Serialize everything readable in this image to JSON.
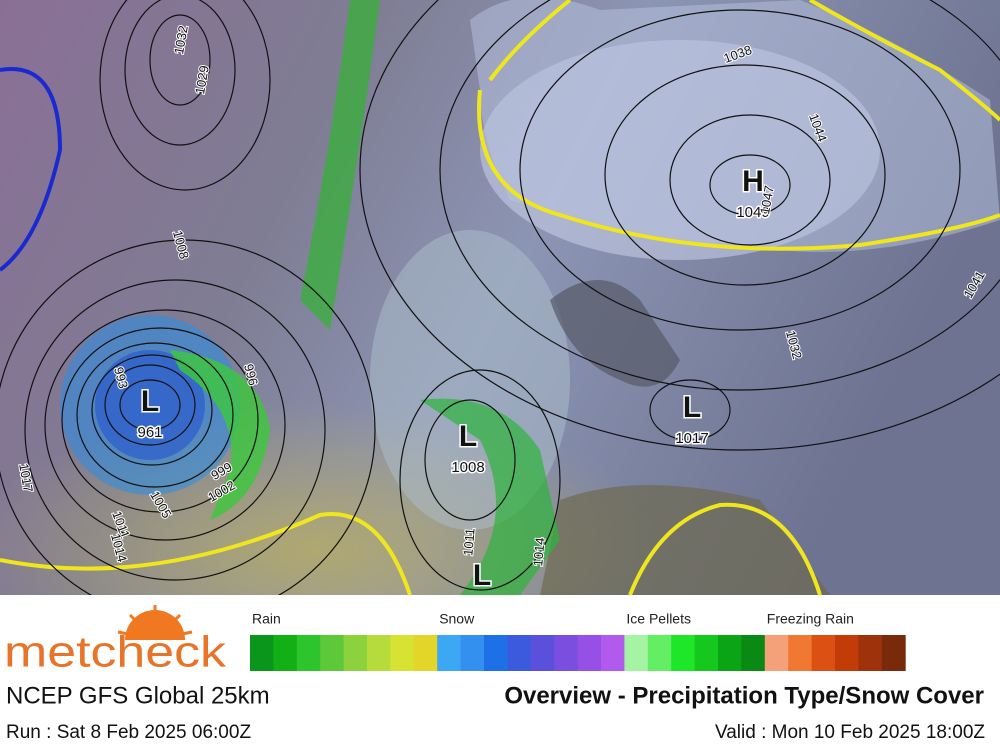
{
  "map": {
    "pressure_centers": [
      {
        "label": "H",
        "value": 1049
      },
      {
        "label": "L",
        "value": 961
      },
      {
        "label": "L",
        "value": 1008
      },
      {
        "label": "L",
        "value": 1017
      },
      {
        "label": "L"
      }
    ],
    "isobar_labels": [
      1032,
      1029,
      1038,
      1044,
      1047,
      1008,
      996,
      993,
      999,
      1002,
      1005,
      1011,
      1014,
      1017,
      1032,
      1041,
      1011,
      1014
    ]
  },
  "legend": {
    "groups": [
      {
        "name": "Rain",
        "colors": [
          "#0a961a",
          "#12b014",
          "#2ec42e",
          "#5cc83a",
          "#8cd23c",
          "#b6dc3c",
          "#d8e232",
          "#e4d628"
        ]
      },
      {
        "name": "Snow",
        "colors": [
          "#3ca8f4",
          "#3490ee",
          "#1e70e6",
          "#3c5ade",
          "#5a50dc",
          "#7a4ede",
          "#9650e6",
          "#b25aee"
        ]
      },
      {
        "name": "Ice Pellets",
        "colors": [
          "#a4f4a4",
          "#64ee64",
          "#1ee628",
          "#14c81e",
          "#0aa414",
          "#0a8a14"
        ]
      },
      {
        "name": "Freezing Rain",
        "colors": [
          "#f4a078",
          "#f07832",
          "#dc5014",
          "#c23c0a",
          "#9e320a",
          "#782a0a"
        ]
      }
    ]
  },
  "footer": {
    "brand": "metcheck",
    "model": "NCEP GFS Global 25km",
    "title": "Overview - Precipitation Type/Snow Cover",
    "run": "Run : Sat 8 Feb 2025 06:00Z",
    "valid": "Valid : Mon 10 Feb 2025 18:00Z"
  }
}
